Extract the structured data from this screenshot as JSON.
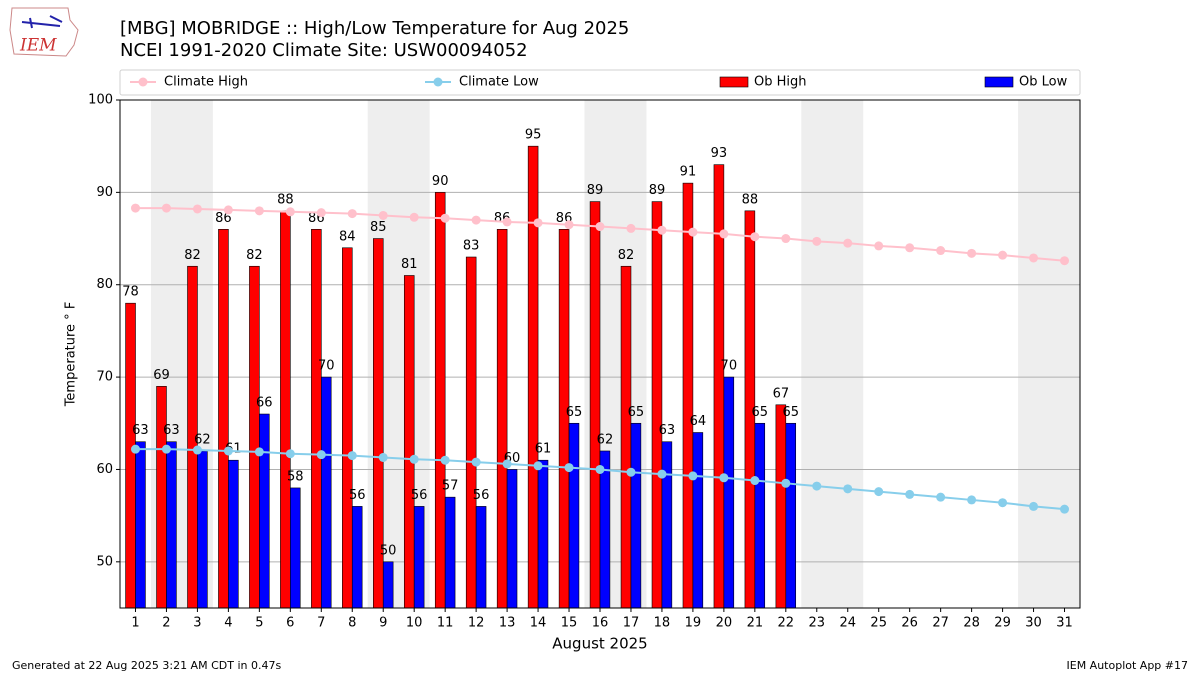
{
  "chart_data": {
    "type": "bar",
    "logo_text": "IEM",
    "title": "[MBG] MOBRIDGE :: High/Low Temperature for Aug 2025",
    "subtitle": "NCEI 1991-2020 Climate Site: USW00094052",
    "y_label": "Temperature ° F",
    "x_label": "August 2025",
    "footer_left": "Generated at 22 Aug 2025 3:21 AM CDT in 0.47s",
    "footer_right": "IEM Autoplot App #17",
    "legend": "top",
    "grid": true,
    "categories": [
      "1",
      "2",
      "3",
      "4",
      "5",
      "6",
      "7",
      "8",
      "9",
      "10",
      "11",
      "12",
      "13",
      "14",
      "15",
      "16",
      "17",
      "18",
      "19",
      "20",
      "21",
      "22",
      "23",
      "24",
      "25",
      "26",
      "27",
      "28",
      "29",
      "30",
      "31"
    ],
    "ylim": [
      45,
      100
    ],
    "yticks": [
      50,
      60,
      70,
      80,
      90,
      100
    ],
    "series": [
      {
        "name": "Climate High",
        "type": "line",
        "color": "#ffc0cb",
        "values": [
          88.3,
          88.3,
          88.2,
          88.1,
          88.0,
          87.9,
          87.8,
          87.7,
          87.5,
          87.3,
          87.2,
          87.0,
          86.8,
          86.7,
          86.5,
          86.3,
          86.1,
          85.9,
          85.7,
          85.5,
          85.2,
          85.0,
          84.7,
          84.5,
          84.2,
          84.0,
          83.7,
          83.4,
          83.2,
          82.9,
          82.6
        ]
      },
      {
        "name": "Climate Low",
        "type": "line",
        "color": "#87ceeb",
        "values": [
          62.2,
          62.2,
          62.1,
          62.0,
          61.9,
          61.7,
          61.6,
          61.5,
          61.3,
          61.1,
          61.0,
          60.8,
          60.6,
          60.4,
          60.2,
          60.0,
          59.7,
          59.5,
          59.3,
          59.1,
          58.8,
          58.5,
          58.2,
          57.9,
          57.6,
          57.3,
          57.0,
          56.7,
          56.4,
          56.0,
          55.7
        ]
      },
      {
        "name": "Ob High",
        "type": "bar",
        "color": "#ff0000",
        "values": [
          78,
          69,
          82,
          86,
          82,
          88,
          86,
          84,
          85,
          81,
          90,
          83,
          86,
          95,
          86,
          89,
          82,
          89,
          91,
          93,
          88,
          67,
          null,
          null,
          null,
          null,
          null,
          null,
          null,
          null,
          null
        ]
      },
      {
        "name": "Ob Low",
        "type": "bar",
        "color": "#0000ff",
        "values": [
          63,
          63,
          62,
          61,
          66,
          58,
          70,
          56,
          50,
          56,
          57,
          56,
          60,
          61,
          65,
          62,
          65,
          63,
          64,
          70,
          65,
          65,
          null,
          null,
          null,
          null,
          null,
          null,
          null,
          null,
          null
        ]
      }
    ]
  }
}
